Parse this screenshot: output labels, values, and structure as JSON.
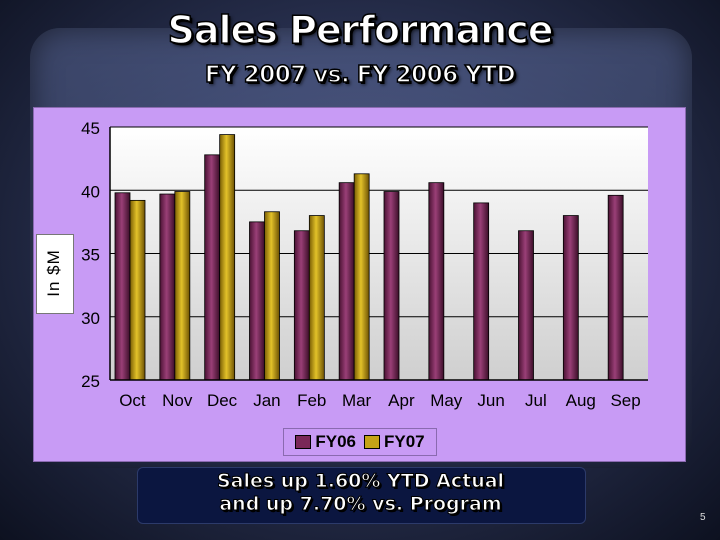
{
  "slide": {
    "title": "Sales Performance",
    "subtitle": "FY 2007 vs. FY 2006 YTD",
    "footer_line1": "Sales up 1.60% YTD Actual",
    "footer_line2": "and up 7.70% vs. Program",
    "page_number": "5"
  },
  "chart_data": {
    "type": "bar",
    "title": "",
    "xlabel": "",
    "ylabel": "In $M",
    "ylim": [
      25,
      45
    ],
    "yticks": [
      "25",
      "30",
      "35",
      "40",
      "45"
    ],
    "categories": [
      "Oct",
      "Nov",
      "Dec",
      "Jan",
      "Feb",
      "Mar",
      "Apr",
      "May",
      "Jun",
      "Jul",
      "Aug",
      "Sep"
    ],
    "series": [
      {
        "name": "FY06",
        "values": [
          39.8,
          39.7,
          42.8,
          37.5,
          36.8,
          40.6,
          39.9,
          40.6,
          39.0,
          36.8,
          38.0,
          39.6
        ]
      },
      {
        "name": "FY07",
        "values": [
          39.2,
          39.9,
          44.4,
          38.3,
          38.0,
          41.3,
          null,
          null,
          null,
          null,
          null,
          null
        ]
      }
    ],
    "colors": {
      "FY06": "#7a2858",
      "FY07": "#c6a317",
      "plot_background": "#c89bf5",
      "gridline": "#000000"
    },
    "legend_position": "bottom"
  }
}
